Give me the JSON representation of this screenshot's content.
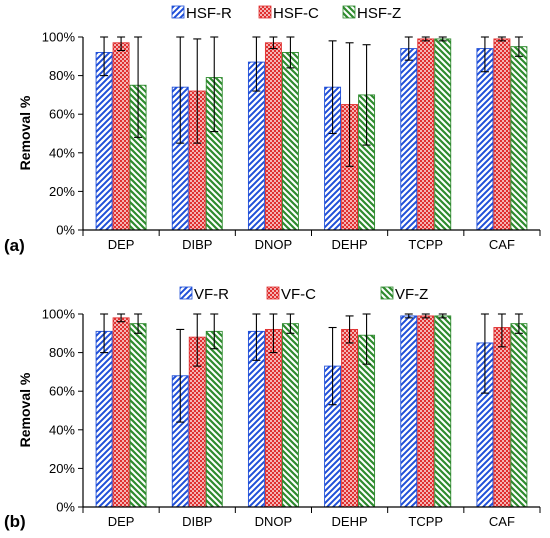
{
  "chart_data": [
    {
      "type": "bar",
      "panel_label": "(a)",
      "ylabel": "Removal %",
      "ylim": [
        0,
        100
      ],
      "yticks": [
        "0%",
        "20%",
        "40%",
        "60%",
        "80%",
        "100%"
      ],
      "categories": [
        "DEP",
        "DIBP",
        "DNOP",
        "DEHP",
        "TCPP",
        "CAF"
      ],
      "legend_position": "top",
      "series": [
        {
          "name": "HSF-R",
          "color": "#1f4fd8",
          "pattern": "diagonal-stripes-blue",
          "values": [
            92,
            74,
            87,
            74,
            94,
            94
          ],
          "error": [
            12,
            29,
            15,
            24,
            6,
            12
          ]
        },
        {
          "name": "HSF-C",
          "color": "#e03030",
          "pattern": "red-checkered",
          "values": [
            97,
            72,
            97,
            65,
            99,
            99
          ],
          "error": [
            4,
            27,
            3,
            32,
            1,
            1
          ]
        },
        {
          "name": "HSF-Z",
          "color": "#2e8b2e",
          "pattern": "diagonal-stripes-green",
          "values": [
            75,
            79,
            92,
            70,
            99,
            95
          ],
          "error": [
            27,
            28,
            8,
            26,
            1,
            5
          ]
        }
      ]
    },
    {
      "type": "bar",
      "panel_label": "(b)",
      "ylabel": "Removal %",
      "ylim": [
        0,
        100
      ],
      "yticks": [
        "0%",
        "20%",
        "40%",
        "60%",
        "80%",
        "100%"
      ],
      "categories": [
        "DEP",
        "DIBP",
        "DNOP",
        "DEHP",
        "TCPP",
        "CAF"
      ],
      "legend_position": "top",
      "series": [
        {
          "name": "VF-R",
          "color": "#1f4fd8",
          "pattern": "diagonal-stripes-blue",
          "values": [
            91,
            68,
            91,
            73,
            99,
            85
          ],
          "error": [
            11,
            24,
            15,
            20,
            1,
            26
          ]
        },
        {
          "name": "VF-C",
          "color": "#e03030",
          "pattern": "red-checkered",
          "values": [
            98,
            88,
            92,
            92,
            99,
            93
          ],
          "error": [
            2,
            15,
            12,
            7,
            1,
            10
          ]
        },
        {
          "name": "VF-Z",
          "color": "#2e8b2e",
          "pattern": "diagonal-stripes-green",
          "values": [
            95,
            91,
            95,
            89,
            99,
            95
          ],
          "error": [
            5,
            9,
            5,
            15,
            1,
            5
          ]
        }
      ]
    }
  ]
}
